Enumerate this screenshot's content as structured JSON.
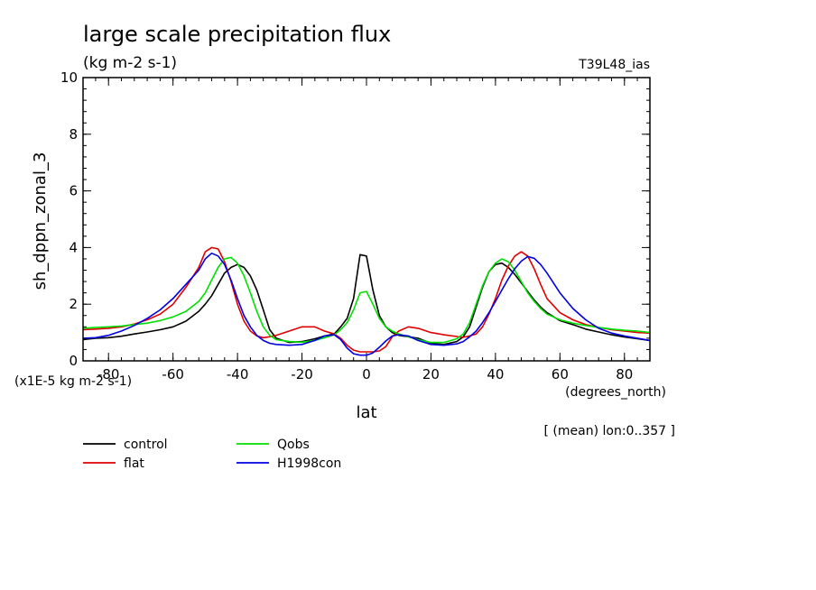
{
  "chart_data": {
    "type": "line",
    "title": "large scale precipitation flux",
    "units": "(kg m-2 s-1)",
    "experiment": "T39L48_ias",
    "ylabel": "sh_dppn_zonal_3",
    "xlabel": "lat",
    "x_units": "(degrees_north)",
    "y_scale_note": "(x1E-5 kg m-2 s-1)",
    "footer_note": "[ (mean) lon:0..357 ]",
    "xlim": [
      -87.9,
      87.9
    ],
    "ylim": [
      0,
      10
    ],
    "x_ticks": [
      -80,
      -60,
      -40,
      -20,
      0,
      20,
      40,
      60,
      80
    ],
    "x_tick_labels": [
      "-80",
      "-60",
      "-40",
      "-20",
      "0",
      "20",
      "40",
      "60",
      "80"
    ],
    "y_ticks": [
      0,
      2,
      4,
      6,
      8,
      10
    ],
    "y_tick_labels": [
      "0",
      "2",
      "4",
      "6",
      "8",
      "10"
    ],
    "x": [
      -87.9,
      -84,
      -80,
      -76,
      -72,
      -68,
      -64,
      -60,
      -56,
      -52,
      -50,
      -48,
      -46,
      -44,
      -42,
      -40,
      -38,
      -36,
      -34,
      -32,
      -30,
      -28,
      -24,
      -20,
      -16,
      -13,
      -10,
      -8,
      -6,
      -4,
      -2,
      0,
      2,
      4,
      6,
      8,
      10,
      13,
      16,
      20,
      24,
      28,
      30,
      32,
      34,
      36,
      38,
      40,
      42,
      44,
      46,
      48,
      50,
      52,
      54,
      56,
      60,
      64,
      68,
      72,
      76,
      80,
      84,
      87.9
    ],
    "series": [
      {
        "name": "control",
        "color": "#000000",
        "values": [
          0.75,
          0.8,
          0.82,
          0.87,
          0.95,
          1.02,
          1.1,
          1.2,
          1.4,
          1.75,
          2.0,
          2.3,
          2.7,
          3.1,
          3.3,
          3.4,
          3.3,
          3.0,
          2.5,
          1.8,
          1.1,
          0.8,
          0.65,
          0.68,
          0.78,
          0.88,
          0.95,
          1.2,
          1.5,
          2.2,
          3.75,
          3.7,
          2.5,
          1.6,
          1.2,
          1.0,
          0.9,
          0.85,
          0.8,
          0.62,
          0.58,
          0.68,
          0.85,
          1.2,
          1.9,
          2.6,
          3.15,
          3.4,
          3.45,
          3.3,
          3.05,
          2.75,
          2.45,
          2.15,
          1.9,
          1.7,
          1.42,
          1.28,
          1.12,
          1.02,
          0.92,
          0.84,
          0.78,
          0.72
        ]
      },
      {
        "name": "flat",
        "color": "#e00000",
        "values": [
          1.1,
          1.12,
          1.15,
          1.2,
          1.3,
          1.45,
          1.65,
          2.0,
          2.6,
          3.3,
          3.85,
          4.0,
          3.95,
          3.5,
          2.8,
          2.0,
          1.4,
          1.05,
          0.88,
          0.82,
          0.85,
          0.9,
          1.05,
          1.2,
          1.2,
          1.05,
          0.95,
          0.8,
          0.55,
          0.38,
          0.32,
          0.32,
          0.32,
          0.35,
          0.5,
          0.85,
          1.05,
          1.2,
          1.15,
          1.0,
          0.92,
          0.86,
          0.83,
          0.88,
          0.95,
          1.2,
          1.65,
          2.2,
          2.85,
          3.35,
          3.7,
          3.85,
          3.7,
          3.25,
          2.7,
          2.2,
          1.7,
          1.45,
          1.28,
          1.18,
          1.1,
          1.05,
          1.0,
          0.98
        ]
      },
      {
        "name": "Qobs",
        "color": "#00e000",
        "values": [
          1.15,
          1.18,
          1.2,
          1.23,
          1.28,
          1.33,
          1.42,
          1.55,
          1.75,
          2.1,
          2.4,
          2.85,
          3.3,
          3.6,
          3.65,
          3.45,
          3.0,
          2.4,
          1.75,
          1.2,
          0.9,
          0.75,
          0.68,
          0.66,
          0.72,
          0.82,
          0.92,
          1.1,
          1.35,
          1.8,
          2.4,
          2.45,
          2.0,
          1.5,
          1.2,
          1.05,
          0.95,
          0.85,
          0.75,
          0.65,
          0.65,
          0.78,
          0.95,
          1.35,
          2.0,
          2.65,
          3.15,
          3.45,
          3.6,
          3.5,
          3.2,
          2.8,
          2.4,
          2.1,
          1.85,
          1.65,
          1.45,
          1.33,
          1.25,
          1.18,
          1.12,
          1.08,
          1.05,
          1.0
        ]
      },
      {
        "name": "H1998con",
        "color": "#0000e0",
        "values": [
          0.8,
          0.82,
          0.9,
          1.05,
          1.25,
          1.5,
          1.8,
          2.2,
          2.7,
          3.2,
          3.6,
          3.8,
          3.7,
          3.4,
          2.85,
          2.2,
          1.6,
          1.2,
          0.9,
          0.72,
          0.62,
          0.58,
          0.55,
          0.58,
          0.72,
          0.88,
          0.92,
          0.75,
          0.45,
          0.25,
          0.2,
          0.2,
          0.28,
          0.48,
          0.7,
          0.88,
          0.92,
          0.88,
          0.72,
          0.58,
          0.55,
          0.6,
          0.68,
          0.85,
          1.05,
          1.35,
          1.7,
          2.1,
          2.5,
          2.9,
          3.25,
          3.52,
          3.68,
          3.62,
          3.4,
          3.1,
          2.4,
          1.85,
          1.45,
          1.15,
          0.98,
          0.88,
          0.8,
          0.72
        ]
      }
    ]
  }
}
